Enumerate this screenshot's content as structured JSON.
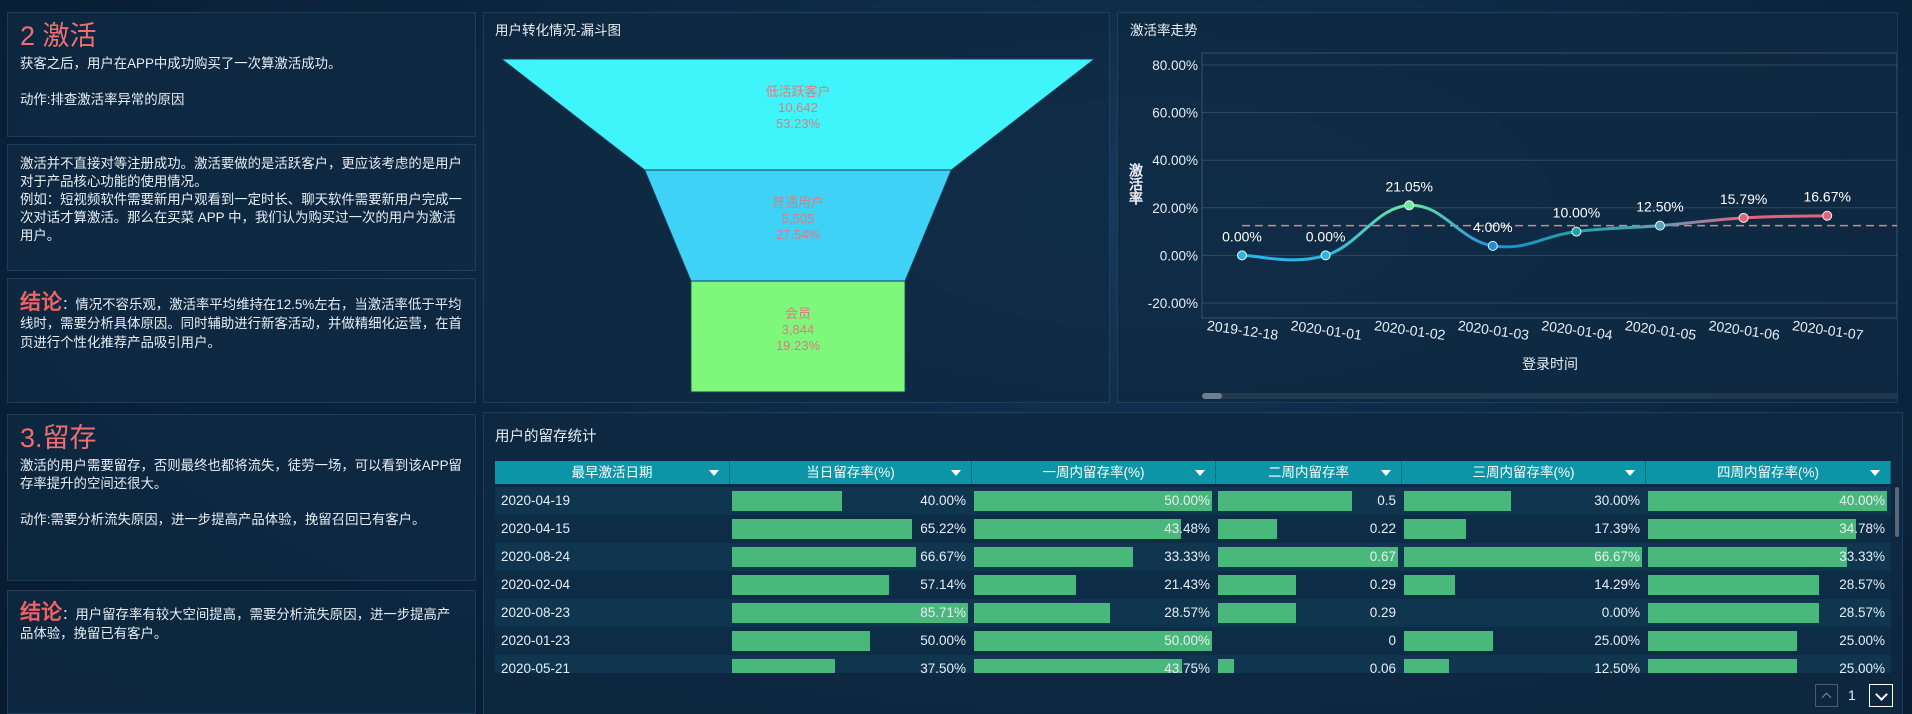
{
  "panels": [
    {
      "title": "2 激活",
      "paragraphs": [
        "获客之后，用户在APP中成功购买了一次算激活成功。",
        "动作:排查激活率异常的原因"
      ]
    },
    {
      "paragraphs": [
        "激活并不直接对等注册成功。激活要做的是活跃客户，更应该考虑的是用户对于产品核心功能的使用情况。",
        "例如：短视频软件需要新用户观看到一定时长、聊天软件需要新用户完成一次对话才算激活。那么在买菜 APP 中，我们认为购买过一次的用户为激活用户。"
      ]
    },
    {
      "label": "结论",
      "text": "：情况不容乐观，激活率平均维持在12.5%左右，当激活率低于平均线时，需要分析具体原因。同时辅助进行新客活动，并做精细化运营，在首页进行个性化推荐产品吸引用户。"
    },
    {
      "title": "3.留存",
      "paragraphs": [
        "激活的用户需要留存，否则最终也都将流失，徒劳一场，可以看到该APP留存率提升的空间还很大。",
        "动作:需要分析流失原因，进一步提高产品体验，挽留召回已有客户。"
      ]
    },
    {
      "label": "结论",
      "text": "：用户留存率有较大空间提高，需要分析流失原因，进一步提高产品体验，挽留已有客户。"
    }
  ],
  "chart_data": [
    {
      "type": "funnel",
      "title": "用户转化情况-漏斗图",
      "categories": [
        "低活跃客户",
        "普通用户",
        "会员"
      ],
      "values": [
        10642,
        5505,
        3844
      ],
      "value_labels": [
        "10,642",
        "5,505",
        "3,844"
      ],
      "percents": [
        53.23,
        27.54,
        19.23
      ],
      "percent_labels": [
        "53.23%",
        "27.54%",
        "19.23%"
      ],
      "colors": [
        "#3ff4fb",
        "#3ed2f6",
        "#7ef77a"
      ],
      "label_color": "#e07a82"
    },
    {
      "type": "line",
      "title": "激活率走势",
      "x_label": "登录时间",
      "y_label": "激活率",
      "categories": [
        "2019-12-18",
        "2020-01-01",
        "2020-01-02",
        "2020-01-03",
        "2020-01-04",
        "2020-01-05",
        "2020-01-06",
        "2020-01-07"
      ],
      "values": [
        0,
        0,
        21.05,
        4.0,
        10.0,
        12.5,
        15.79,
        16.67
      ],
      "value_labels": [
        "0.00%",
        "0.00%",
        "21.05%",
        "4.00%",
        "10.00%",
        "12.50%",
        "15.79%",
        "16.67%"
      ],
      "colors": [
        "#2cb4e6",
        "#2cb4e6",
        "#6fe89a",
        "#1f8be0",
        "#23a3a0",
        "#5a9fb8",
        "#e8607c",
        "#e8607c"
      ],
      "ylim": [
        -20,
        80
      ],
      "yticks": [
        {
          "value": -20,
          "label": "-20.00%"
        },
        {
          "value": 0,
          "label": "0.00%"
        },
        {
          "value": 20,
          "label": "20.00%"
        },
        {
          "value": 40,
          "label": "40.00%"
        },
        {
          "value": 60,
          "label": "60.00%"
        },
        {
          "value": 80,
          "label": "80.00%"
        }
      ],
      "grid": true,
      "mark_line": 12.5,
      "mark_line_color": "#c9899a"
    }
  ],
  "table": {
    "title": "用户的留存统计",
    "columns": [
      "最早激活日期",
      "当日留存率(%)",
      "一周内留存率(%)",
      "二周内留存率",
      "三周内留存率(%)",
      "四周内留存率(%)"
    ],
    "bar_color": "#49b97b",
    "rows": [
      {
        "date": "2020-04-19",
        "values": [
          40,
          50,
          0.5,
          30,
          40
        ],
        "value_labels": [
          "40.00%",
          "50.00%",
          "0.5",
          "30.00%",
          "40.00%"
        ]
      },
      {
        "date": "2020-04-15",
        "values": [
          65.22,
          43.48,
          0.22,
          17.39,
          34.78
        ],
        "value_labels": [
          "65.22%",
          "43.48%",
          "0.22",
          "17.39%",
          "34.78%"
        ]
      },
      {
        "date": "2020-08-24",
        "values": [
          66.67,
          33.33,
          0.67,
          66.67,
          33.33
        ],
        "value_labels": [
          "66.67%",
          "33.33%",
          "0.67",
          "66.67%",
          "33.33%"
        ]
      },
      {
        "date": "2020-02-04",
        "values": [
          57.14,
          21.43,
          0.29,
          14.29,
          28.57
        ],
        "value_labels": [
          "57.14%",
          "21.43%",
          "0.29",
          "14.29%",
          "28.57%"
        ]
      },
      {
        "date": "2020-08-23",
        "values": [
          85.71,
          28.57,
          0.29,
          0,
          28.57
        ],
        "value_labels": [
          "85.71%",
          "28.57%",
          "0.29",
          "0.00%",
          "28.57%"
        ]
      },
      {
        "date": "2020-01-23",
        "values": [
          50,
          50,
          0,
          25,
          25
        ],
        "value_labels": [
          "50.00%",
          "50.00%",
          "0",
          "25.00%",
          "25.00%"
        ]
      },
      {
        "date": "2020-05-21",
        "values": [
          37.5,
          43.75,
          0.06,
          12.5,
          25
        ],
        "value_labels": [
          "37.50%",
          "43.75%",
          "0.06",
          "12.50%",
          "25.00%"
        ]
      }
    ]
  },
  "pager": {
    "page": 1
  }
}
